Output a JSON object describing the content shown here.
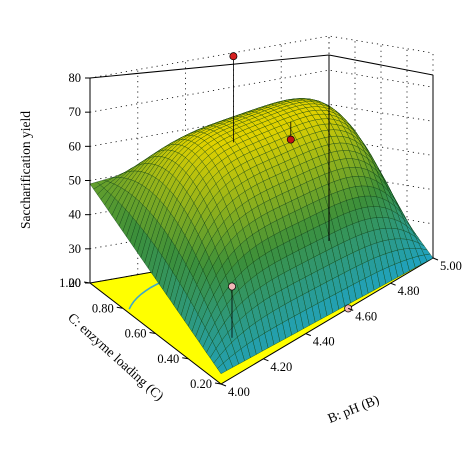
{
  "chart_data": {
    "type": "surface",
    "title": "",
    "zlabel": "Saccharification yield",
    "xlabel": "B: pH (B)",
    "ylabel": "C: enzyme loading (C)",
    "xlim": [
      4.0,
      5.0
    ],
    "ylim": [
      0.2,
      1.0
    ],
    "zlim": [
      20,
      80
    ],
    "x_ticks": [
      "4.00",
      "4.20",
      "4.40",
      "4.60",
      "4.80",
      "5.00"
    ],
    "y_ticks": [
      "0.20",
      "0.40",
      "0.60",
      "0.80",
      "1.00"
    ],
    "z_ticks": [
      "20",
      "30",
      "40",
      "50",
      "60",
      "70",
      "80"
    ],
    "grid": true,
    "colormap": {
      "low": "#1fa3c4",
      "mid": "#3c8f3a",
      "high": "#e0d100"
    },
    "floor_color": "#ffff00",
    "surface_model": {
      "corners_yield": {
        "pH_4.00_enz_1.00": 49,
        "pH_5.00_enz_1.00": 57,
        "pH_5.00_enz_0.20": 20,
        "pH_4.00_enz_0.20": 23
      },
      "peak_yield": 67
    },
    "design_points": [
      {
        "pH": 4.6,
        "enzyme_loading": 0.2,
        "yield": 20,
        "color": "#f2b8b8",
        "above_surface": false
      },
      {
        "pH": 4.6,
        "enzyme_loading": 1.0,
        "yield": 79,
        "color": "#d62020",
        "above_surface": true
      },
      {
        "pH": 4.6,
        "enzyme_loading": 0.6,
        "yield": 62,
        "color": "#c01515",
        "above_surface": true
      },
      {
        "pH": 4.2,
        "enzyme_loading": 0.4,
        "yield": 35,
        "color": "#f2b8b8",
        "above_surface": false
      }
    ]
  }
}
